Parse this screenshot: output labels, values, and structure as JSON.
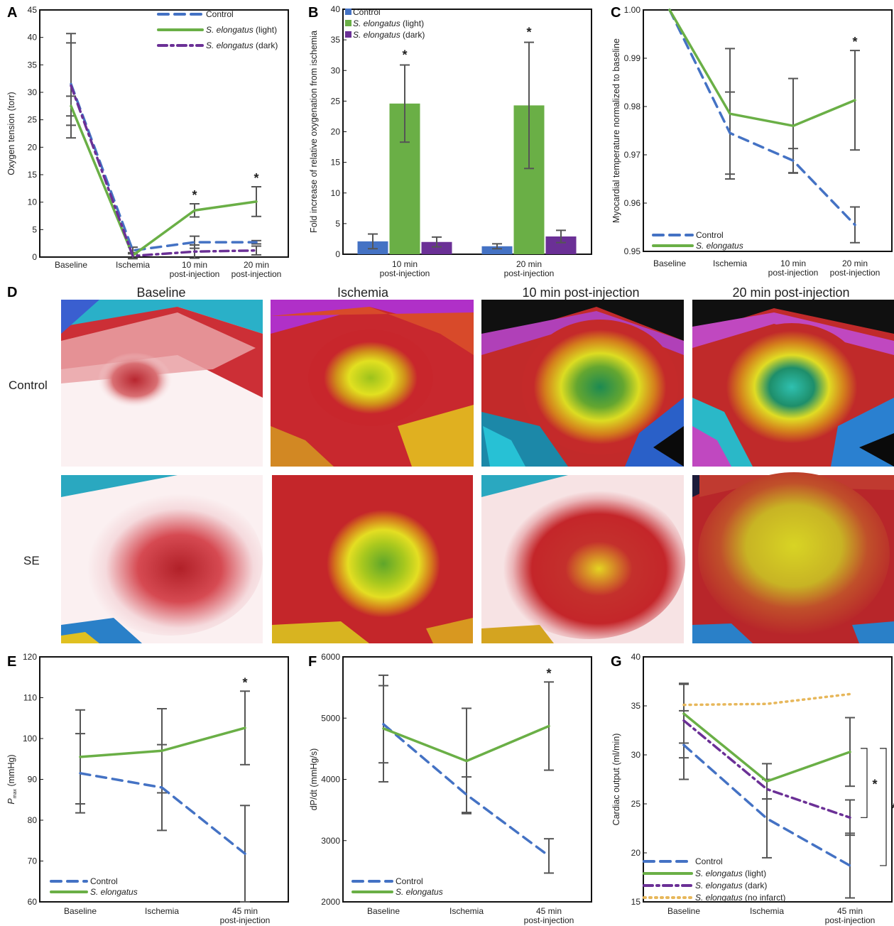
{
  "colors": {
    "control": "#4472c4",
    "se": "#6aaf46",
    "se_light": "#6aaf46",
    "se_dark": "#6b3096",
    "no_infarct": "#e7b75a",
    "errorbar": "#555555"
  },
  "panel_letters": [
    "A",
    "B",
    "C",
    "D",
    "E",
    "F",
    "G"
  ],
  "panel_d": {
    "columns": [
      "Baseline",
      "Ischemia",
      "10 min post-injection",
      "20 min post-injection"
    ],
    "rows": [
      "Control",
      "SE"
    ]
  },
  "chart_data": [
    {
      "panel": "A",
      "type": "line",
      "ylabel": "Oxygen tension (torr)",
      "ylim": [
        0,
        45
      ],
      "yticks": [
        0,
        5,
        10,
        15,
        20,
        25,
        30,
        35,
        40,
        45
      ],
      "categories": [
        [
          "Baseline"
        ],
        [
          "Ischemia"
        ],
        [
          "10 min",
          "post-injection"
        ],
        [
          "20 min",
          "post-injection"
        ]
      ],
      "series": [
        {
          "name": "Control",
          "style": "dash",
          "values": [
            31.5,
            1.2,
            2.7,
            2.7
          ],
          "errors": [
            7.5,
            0.6,
            1.1,
            0.3
          ]
        },
        {
          "name_prefix": "S. elongatus",
          "name_suffix": " (light)",
          "style": "solid",
          "values": [
            27.5,
            0.3,
            8.5,
            10.1
          ],
          "errors": [
            1.8,
            0.5,
            1.2,
            2.7
          ]
        },
        {
          "name_prefix": "S. elongatus",
          "name_suffix": " (dark)",
          "style": "dashdot",
          "values": [
            31.2,
            0.2,
            1.0,
            1.2
          ],
          "errors": [
            9.5,
            0.5,
            1.2,
            0.8
          ]
        }
      ],
      "significance": [
        2,
        3
      ]
    },
    {
      "panel": "B",
      "type": "bar",
      "ylabel": "Fold increase of relative oxygenation from ischemia",
      "ylim": [
        0,
        40
      ],
      "yticks": [
        0,
        5,
        10,
        15,
        20,
        25,
        30,
        35,
        40
      ],
      "categories": [
        [
          "10 min",
          "post-injection"
        ],
        [
          "20 min",
          "post-injection"
        ]
      ],
      "series": [
        {
          "name": "Control",
          "values": [
            2.1,
            1.3
          ],
          "errors": [
            1.2,
            0.4
          ]
        },
        {
          "name_prefix": "S. elongatus",
          "name_suffix": " (light)",
          "values": [
            24.6,
            24.3
          ],
          "errors": [
            6.3,
            10.3
          ]
        },
        {
          "name_prefix": "S. elongatus",
          "name_suffix": " (dark)",
          "values": [
            2.0,
            2.9
          ],
          "errors": [
            0.8,
            1.0
          ]
        }
      ],
      "significance_bars": [
        [
          0,
          1
        ],
        [
          1,
          1
        ]
      ]
    },
    {
      "panel": "C",
      "type": "line",
      "ylabel": "Myocardial temperature normalized to baseline",
      "ylim": [
        0.95,
        1.0
      ],
      "yticks": [
        "0.95",
        "0.96",
        "0.97",
        "0.98",
        "0.99",
        "1.00"
      ],
      "categories": [
        [
          "Baseline"
        ],
        [
          "Ischemia"
        ],
        [
          "10 min",
          "post-injection"
        ],
        [
          "20 min",
          "post-injection"
        ]
      ],
      "series": [
        {
          "name": "Control",
          "style": "dash",
          "values": [
            1.0,
            0.9745,
            0.9688,
            0.9555
          ],
          "errors": [
            0,
            0.0085,
            0.0025,
            0.0037
          ]
        },
        {
          "name_prefix": "S. elongatus",
          "name_suffix": "",
          "style": "solid",
          "values": [
            1.0,
            0.9785,
            0.976,
            0.9813
          ],
          "errors": [
            0,
            0.0135,
            0.0098,
            0.0103
          ]
        }
      ],
      "significance": [
        3
      ]
    },
    {
      "panel": "E",
      "type": "line",
      "ylabel_main": "P",
      "ylabel_sub": "max",
      "ylabel_rest": " (mmHg)",
      "ylim": [
        60,
        120
      ],
      "yticks": [
        60,
        70,
        80,
        90,
        100,
        110,
        120
      ],
      "categories": [
        [
          "Baseline"
        ],
        [
          "Ischemia"
        ],
        [
          "45 min",
          "post-injection"
        ]
      ],
      "series": [
        {
          "name": "Control",
          "style": "dash",
          "values": [
            91.5,
            88.0,
            71.8
          ],
          "errors": [
            9.7,
            10.5,
            11.8
          ]
        },
        {
          "name_prefix": "S. elongatus",
          "name_suffix": "",
          "style": "solid",
          "values": [
            95.5,
            97.0,
            102.6
          ],
          "errors": [
            11.5,
            10.3,
            9.0
          ]
        }
      ],
      "significance": [
        2
      ]
    },
    {
      "panel": "F",
      "type": "line",
      "ylabel": "dP/dt (mmHg/s)",
      "ylim": [
        2000,
        6000
      ],
      "yticks": [
        2000,
        3000,
        4000,
        5000,
        6000
      ],
      "categories": [
        [
          "Baseline"
        ],
        [
          "Ischemia"
        ],
        [
          "45 min",
          "post-injection"
        ]
      ],
      "series": [
        {
          "name": "Control",
          "style": "dash",
          "values": [
            4900,
            3750,
            2750
          ],
          "errors": [
            630,
            290,
            280
          ]
        },
        {
          "name_prefix": "S. elongatus",
          "name_suffix": "",
          "style": "solid",
          "values": [
            4830,
            4300,
            4870
          ],
          "errors": [
            870,
            860,
            720
          ]
        }
      ],
      "significance": [
        2
      ]
    },
    {
      "panel": "G",
      "type": "line",
      "ylabel": "Cardiac output (ml/min)",
      "ylim": [
        15,
        40
      ],
      "yticks": [
        15,
        20,
        25,
        30,
        35,
        40
      ],
      "categories": [
        [
          "Baseline"
        ],
        [
          "Ischemia"
        ],
        [
          "45 min",
          "post-injection"
        ]
      ],
      "series": [
        {
          "name": "Control",
          "style": "dash",
          "values": [
            31.0,
            23.5,
            18.7
          ],
          "errors": [
            3.5,
            4.0,
            3.3
          ]
        },
        {
          "name_prefix": "S. elongatus",
          "name_suffix": " (light)",
          "style": "solid",
          "values": [
            34.2,
            27.3,
            30.3
          ],
          "errors": [
            3.0,
            1.8,
            3.5
          ]
        },
        {
          "name_prefix": "S. elongatus",
          "name_suffix": " (dark)",
          "style": "dashdot",
          "values": [
            33.5,
            26.5,
            23.6
          ],
          "errors": [
            3.8,
            1.0,
            1.8
          ]
        },
        {
          "name_prefix": "S. elongatus",
          "name_suffix": " (no infarct)",
          "style": "dot",
          "values": [
            35.1,
            35.2,
            36.2
          ],
          "errors": [
            0,
            0,
            0
          ]
        }
      ],
      "brackets": [
        {
          "from": 30.3,
          "to": 23.6
        },
        {
          "from": 30.3,
          "to": 18.7
        }
      ]
    }
  ]
}
